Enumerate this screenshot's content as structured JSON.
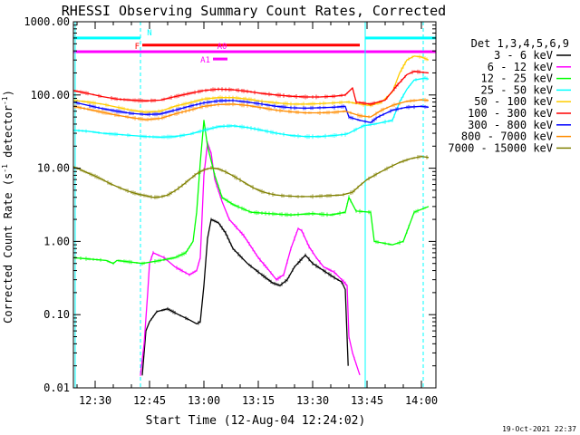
{
  "chart_data": {
    "type": "line",
    "title": "RHESSI Observing Summary Count Rates, Corrected",
    "xlabel": "Start Time (12-Aug-04 12:24:02)",
    "ylabel_main": "Corrected Count Rate (s",
    "ylabel_exp": "-1",
    "ylabel_tail": " detector",
    "ylabel_close": ")",
    "footer_date": "19-Oct-2021 22:37",
    "y_scale": "log",
    "ylim": [
      0.01,
      1000
    ],
    "xlim_minutes": [
      24.0,
      124.0
    ],
    "x_ticks": [
      {
        "min": 30,
        "label": "12:30"
      },
      {
        "min": 45,
        "label": "12:45"
      },
      {
        "min": 60,
        "label": "13:00"
      },
      {
        "min": 75,
        "label": "13:15"
      },
      {
        "min": 90,
        "label": "13:30"
      },
      {
        "min": 105,
        "label": "13:45"
      },
      {
        "min": 120,
        "label": "14:00"
      }
    ],
    "y_ticks": [
      {
        "v": 1000,
        "label": "1000.00"
      },
      {
        "v": 100,
        "label": "100.00"
      },
      {
        "v": 10,
        "label": "10.00"
      },
      {
        "v": 1,
        "label": "1.00"
      },
      {
        "v": 0.1,
        "label": "0.10"
      },
      {
        "v": 0.01,
        "label": "0.01"
      }
    ],
    "legend_title": "Det 1,3,4,5,6,9",
    "series": [
      {
        "name": "3 - 6 keV",
        "color": "#000000",
        "points": [
          [
            43,
            0.015
          ],
          [
            44,
            0.06
          ],
          [
            45,
            0.08
          ],
          [
            47,
            0.11
          ],
          [
            50,
            0.12
          ],
          [
            53,
            0.1
          ],
          [
            56,
            0.085
          ],
          [
            58,
            0.075
          ],
          [
            59,
            0.08
          ],
          [
            60,
            0.25
          ],
          [
            61,
            1.1
          ],
          [
            62,
            2.0
          ],
          [
            64,
            1.8
          ],
          [
            66,
            1.3
          ],
          [
            68,
            0.8
          ],
          [
            72,
            0.5
          ],
          [
            76,
            0.35
          ],
          [
            79,
            0.27
          ],
          [
            81,
            0.25
          ],
          [
            83,
            0.3
          ],
          [
            85,
            0.45
          ],
          [
            88,
            0.65
          ],
          [
            90,
            0.5
          ],
          [
            93,
            0.4
          ],
          [
            96,
            0.32
          ],
          [
            98,
            0.28
          ],
          [
            99,
            0.22
          ],
          [
            99.8,
            0.02
          ]
        ]
      },
      {
        "name": "6 - 12 keV",
        "color": "#ff00ff",
        "points": [
          [
            42.5,
            0.015
          ],
          [
            43.5,
            0.04
          ],
          [
            44.5,
            0.2
          ],
          [
            45,
            0.5
          ],
          [
            46,
            0.7
          ],
          [
            49,
            0.6
          ],
          [
            52,
            0.45
          ],
          [
            56,
            0.35
          ],
          [
            58,
            0.4
          ],
          [
            59,
            0.6
          ],
          [
            60,
            8.0
          ],
          [
            61,
            22
          ],
          [
            62,
            16
          ],
          [
            63,
            7.0
          ],
          [
            65,
            3.5
          ],
          [
            67,
            2.0
          ],
          [
            71,
            1.2
          ],
          [
            75,
            0.6
          ],
          [
            78,
            0.4
          ],
          [
            80,
            0.3
          ],
          [
            82,
            0.35
          ],
          [
            84,
            0.8
          ],
          [
            86,
            1.5
          ],
          [
            87,
            1.4
          ],
          [
            89,
            0.85
          ],
          [
            91,
            0.6
          ],
          [
            93,
            0.45
          ],
          [
            96,
            0.38
          ],
          [
            98,
            0.3
          ],
          [
            99.5,
            0.25
          ],
          [
            100,
            0.05
          ],
          [
            101,
            0.03
          ],
          [
            103,
            0.015
          ]
        ]
      },
      {
        "name": "12 - 25 keV",
        "color": "#00ff00",
        "points": [
          [
            24,
            0.6
          ],
          [
            33,
            0.55
          ],
          [
            35,
            0.5
          ],
          [
            36,
            0.55
          ],
          [
            43,
            0.5
          ],
          [
            48,
            0.55
          ],
          [
            52,
            0.6
          ],
          [
            55,
            0.7
          ],
          [
            57,
            1.0
          ],
          [
            58,
            2.5
          ],
          [
            59,
            12
          ],
          [
            60,
            45
          ],
          [
            61,
            20
          ],
          [
            63,
            8
          ],
          [
            65,
            4.0
          ],
          [
            68,
            3.2
          ],
          [
            73,
            2.5
          ],
          [
            78,
            2.4
          ],
          [
            84,
            2.3
          ],
          [
            90,
            2.4
          ],
          [
            95,
            2.3
          ],
          [
            99,
            2.5
          ],
          [
            100,
            4.0
          ],
          [
            102,
            2.6
          ],
          [
            106,
            2.5
          ],
          [
            107,
            1.0
          ],
          [
            112,
            0.9
          ],
          [
            115,
            1.0
          ],
          [
            118,
            2.5
          ],
          [
            122,
            3.0
          ]
        ]
      },
      {
        "name": "25 - 50 keV",
        "color": "#00ffff",
        "points": [
          [
            24,
            33
          ],
          [
            28,
            32
          ],
          [
            32,
            30
          ],
          [
            36,
            29
          ],
          [
            40,
            28
          ],
          [
            44,
            27
          ],
          [
            48,
            26.5
          ],
          [
            52,
            27
          ],
          [
            56,
            29
          ],
          [
            60,
            33
          ],
          [
            64,
            37
          ],
          [
            68,
            38
          ],
          [
            72,
            36
          ],
          [
            76,
            33
          ],
          [
            80,
            30
          ],
          [
            84,
            28
          ],
          [
            88,
            27
          ],
          [
            92,
            27
          ],
          [
            96,
            28
          ],
          [
            99,
            29
          ],
          [
            100,
            30
          ],
          [
            101,
            32
          ],
          [
            104,
            38
          ],
          [
            107,
            40
          ],
          [
            112,
            45
          ],
          [
            114,
            80
          ],
          [
            116,
            120
          ],
          [
            118,
            160
          ],
          [
            121,
            170
          ],
          [
            122,
            165
          ]
        ]
      },
      {
        "name": "50 - 100 keV",
        "color": "#ffcc00",
        "points": [
          [
            24,
            85
          ],
          [
            28,
            80
          ],
          [
            32,
            75
          ],
          [
            36,
            68
          ],
          [
            40,
            62
          ],
          [
            44,
            58
          ],
          [
            48,
            60
          ],
          [
            52,
            70
          ],
          [
            56,
            78
          ],
          [
            60,
            88
          ],
          [
            64,
            92
          ],
          [
            68,
            92
          ],
          [
            72,
            88
          ],
          [
            76,
            82
          ],
          [
            80,
            78
          ],
          [
            84,
            75
          ],
          [
            88,
            75
          ],
          [
            92,
            76
          ],
          [
            96,
            78
          ],
          [
            99,
            80
          ],
          [
            100,
            80
          ],
          [
            103,
            75
          ],
          [
            106,
            72
          ],
          [
            109,
            80
          ],
          [
            112,
            110
          ],
          [
            114,
            200
          ],
          [
            116,
            300
          ],
          [
            118,
            340
          ],
          [
            120,
            330
          ],
          [
            122,
            300
          ]
        ]
      },
      {
        "name": "100 - 300 keV",
        "color": "#ff0000",
        "points": [
          [
            24,
            115
          ],
          [
            28,
            105
          ],
          [
            32,
            95
          ],
          [
            36,
            88
          ],
          [
            40,
            85
          ],
          [
            44,
            83
          ],
          [
            48,
            85
          ],
          [
            52,
            95
          ],
          [
            56,
            105
          ],
          [
            60,
            115
          ],
          [
            64,
            120
          ],
          [
            68,
            118
          ],
          [
            72,
            112
          ],
          [
            76,
            105
          ],
          [
            80,
            100
          ],
          [
            84,
            96
          ],
          [
            88,
            94
          ],
          [
            92,
            94
          ],
          [
            96,
            96
          ],
          [
            99,
            100
          ],
          [
            101,
            125
          ],
          [
            102,
            80
          ],
          [
            106,
            75
          ],
          [
            110,
            85
          ],
          [
            113,
            130
          ],
          [
            116,
            190
          ],
          [
            118,
            210
          ],
          [
            120,
            205
          ],
          [
            122,
            200
          ]
        ]
      },
      {
        "name": "300 - 800 keV",
        "color": "#0000ff",
        "points": [
          [
            24,
            80
          ],
          [
            28,
            72
          ],
          [
            32,
            65
          ],
          [
            36,
            60
          ],
          [
            40,
            56
          ],
          [
            44,
            54
          ],
          [
            48,
            55
          ],
          [
            52,
            62
          ],
          [
            56,
            70
          ],
          [
            60,
            78
          ],
          [
            64,
            83
          ],
          [
            68,
            84
          ],
          [
            72,
            80
          ],
          [
            76,
            75
          ],
          [
            80,
            70
          ],
          [
            84,
            67
          ],
          [
            88,
            66
          ],
          [
            92,
            67
          ],
          [
            96,
            68
          ],
          [
            99,
            70
          ],
          [
            100,
            50
          ],
          [
            103,
            45
          ],
          [
            106,
            42
          ],
          [
            108,
            50
          ],
          [
            112,
            62
          ],
          [
            116,
            68
          ],
          [
            120,
            70
          ],
          [
            122,
            68
          ]
        ]
      },
      {
        "name": "800 - 7000 keV",
        "color": "#ff8c00",
        "points": [
          [
            24,
            70
          ],
          [
            28,
            64
          ],
          [
            32,
            58
          ],
          [
            36,
            53
          ],
          [
            40,
            49
          ],
          [
            44,
            46
          ],
          [
            48,
            48
          ],
          [
            52,
            55
          ],
          [
            56,
            62
          ],
          [
            60,
            70
          ],
          [
            64,
            74
          ],
          [
            68,
            75
          ],
          [
            72,
            72
          ],
          [
            76,
            67
          ],
          [
            80,
            62
          ],
          [
            84,
            59
          ],
          [
            88,
            57
          ],
          [
            92,
            57
          ],
          [
            96,
            58
          ],
          [
            99,
            60
          ],
          [
            100,
            58
          ],
          [
            103,
            52
          ],
          [
            106,
            50
          ],
          [
            109,
            62
          ],
          [
            112,
            72
          ],
          [
            116,
            82
          ],
          [
            120,
            86
          ],
          [
            122,
            84
          ]
        ]
      },
      {
        "name": "7000 - 15000 keV",
        "color": "#808000",
        "points": [
          [
            24,
            10.5
          ],
          [
            26,
            9.5
          ],
          [
            28,
            8.6
          ],
          [
            30,
            7.8
          ],
          [
            32,
            7.0
          ],
          [
            34,
            6.2
          ],
          [
            36,
            5.6
          ],
          [
            38,
            5.1
          ],
          [
            40,
            4.7
          ],
          [
            42,
            4.4
          ],
          [
            44,
            4.2
          ],
          [
            46,
            4.0
          ],
          [
            48,
            4.05
          ],
          [
            50,
            4.3
          ],
          [
            52,
            4.9
          ],
          [
            54,
            5.8
          ],
          [
            56,
            7.0
          ],
          [
            58,
            8.4
          ],
          [
            60,
            9.5
          ],
          [
            62,
            10.1
          ],
          [
            64,
            9.8
          ],
          [
            66,
            8.9
          ],
          [
            68,
            7.9
          ],
          [
            70,
            6.9
          ],
          [
            72,
            6.0
          ],
          [
            74,
            5.3
          ],
          [
            76,
            4.8
          ],
          [
            78,
            4.5
          ],
          [
            80,
            4.3
          ],
          [
            82,
            4.2
          ],
          [
            86,
            4.1
          ],
          [
            90,
            4.1
          ],
          [
            94,
            4.2
          ],
          [
            98,
            4.3
          ],
          [
            101,
            4.7
          ],
          [
            103,
            5.8
          ],
          [
            105,
            7.0
          ],
          [
            108,
            8.5
          ],
          [
            111,
            10.2
          ],
          [
            114,
            12
          ],
          [
            117,
            13.5
          ],
          [
            120,
            14.5
          ],
          [
            122,
            14.0
          ]
        ]
      }
    ],
    "state_bars": [
      {
        "label": "N",
        "color": "#00ffff",
        "level": 600,
        "label_side": "above",
        "ranges": [
          [
            24,
            42.5
          ],
          [
            104.5,
            124
          ]
        ]
      },
      {
        "label": "F",
        "color": "#ff0000",
        "level": 480,
        "label_side": "left",
        "ranges": [
          [
            43,
            103
          ]
        ]
      },
      {
        "label": "A0",
        "color": "#ff00ff",
        "level": 390,
        "label_side": "above",
        "ranges": [
          [
            24,
            124
          ]
        ]
      },
      {
        "label": "A1",
        "color": "#ff00ff",
        "level": 310,
        "label_side": "left",
        "ranges": [
          [
            62.5,
            66.5
          ]
        ]
      }
    ],
    "vertical_markers": [
      {
        "min": 24.5,
        "style": "solid",
        "color": "#00ffff"
      },
      {
        "min": 42.5,
        "style": "dashed",
        "color": "#00ffff"
      },
      {
        "min": 104.5,
        "style": "solid",
        "color": "#00ffff"
      },
      {
        "min": 120.5,
        "style": "dashed",
        "color": "#00ffff"
      }
    ]
  }
}
